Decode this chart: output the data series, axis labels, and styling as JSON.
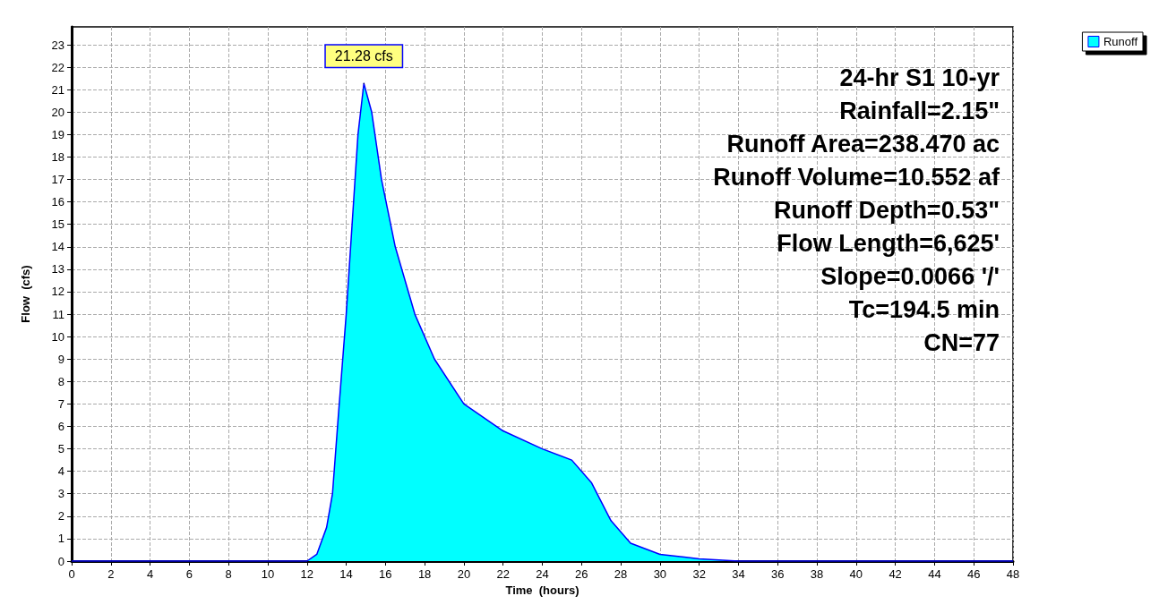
{
  "chart_data": {
    "type": "area",
    "xlabel": "Time  (hours)",
    "ylabel": "Flow  (cfs)",
    "x": [
      0,
      12,
      12.5,
      13,
      13.3,
      13.6,
      14,
      14.3,
      14.6,
      14.9,
      15.3,
      15.8,
      16.5,
      17.5,
      18.5,
      20,
      22,
      24,
      25.5,
      26.5,
      27.5,
      28.5,
      30,
      32,
      34,
      48
    ],
    "series": [
      {
        "name": "Runoff",
        "color": "#00ffff",
        "values": [
          0,
          0,
          0.3,
          1.5,
          3,
          6.5,
          11,
          15,
          19,
          21.28,
          20,
          17,
          14,
          11,
          9,
          7,
          5.8,
          5,
          4.5,
          3.5,
          1.8,
          0.8,
          0.3,
          0.1,
          0,
          0
        ]
      }
    ],
    "xlim": [
      0,
      48
    ],
    "xticks": [
      0,
      2,
      4,
      6,
      8,
      10,
      12,
      14,
      16,
      18,
      20,
      22,
      24,
      26,
      28,
      30,
      32,
      34,
      36,
      38,
      40,
      42,
      44,
      46,
      48
    ],
    "ylim": [
      0,
      23.8
    ],
    "yticks": [
      0,
      1,
      2,
      3,
      4,
      5,
      6,
      7,
      8,
      9,
      10,
      11,
      12,
      13,
      14,
      15,
      16,
      17,
      18,
      19,
      20,
      21,
      22,
      23
    ],
    "grid": true,
    "legend": "top right",
    "marker": "none",
    "line_style": "solid",
    "annotations": [
      {
        "text": "21.28 cfs",
        "x": 14.9,
        "y": 21.28
      },
      "24-hr S1 10-yr",
      "Rainfall=2.15\"",
      "Runoff Area=238.470 ac",
      "Runoff Volume=10.552 af",
      "Runoff Depth=0.53\"",
      "Flow Length=6,625'",
      "Slope=0.0066 '/'",
      "Tc=194.5 min",
      "CN=77"
    ]
  }
}
